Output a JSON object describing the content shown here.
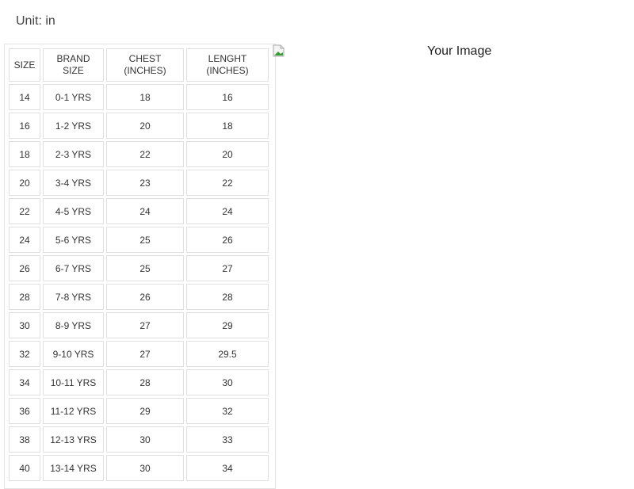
{
  "unit_label": "Unit: in",
  "headers": [
    "SIZE",
    "BRAND SIZE",
    "CHEST (INCHES)",
    "LENGHT (INCHES)"
  ],
  "header_lines": [
    [
      "SIZE"
    ],
    [
      "BRAND",
      "SIZE"
    ],
    [
      "CHEST",
      "(INCHES)"
    ],
    [
      "LENGHT",
      "(INCHES)"
    ]
  ],
  "rows": [
    [
      "14",
      "0-1 YRS",
      "18",
      "16"
    ],
    [
      "16",
      "1-2 YRS",
      "20",
      "18"
    ],
    [
      "18",
      "2-3 YRS",
      "22",
      "20"
    ],
    [
      "20",
      "3-4 YRS",
      "23",
      "22"
    ],
    [
      "22",
      "4-5 YRS",
      "24",
      "24"
    ],
    [
      "24",
      "5-6 YRS",
      "25",
      "26"
    ],
    [
      "26",
      "6-7 YRS",
      "25",
      "27"
    ],
    [
      "28",
      "7-8 YRS",
      "26",
      "28"
    ],
    [
      "30",
      "8-9 YRS",
      "27",
      "29"
    ],
    [
      "32",
      "9-10 YRS",
      "27",
      "29.5"
    ],
    [
      "34",
      "10-11 YRS",
      "28",
      "30"
    ],
    [
      "36",
      "11-12 YRS",
      "29",
      "32"
    ],
    [
      "38",
      "12-13 YRS",
      "30",
      "33"
    ],
    [
      "40",
      "13-14 YRS",
      "30",
      "34"
    ]
  ],
  "image": {
    "alt": "Your Image",
    "icon": "broken-image-icon"
  }
}
